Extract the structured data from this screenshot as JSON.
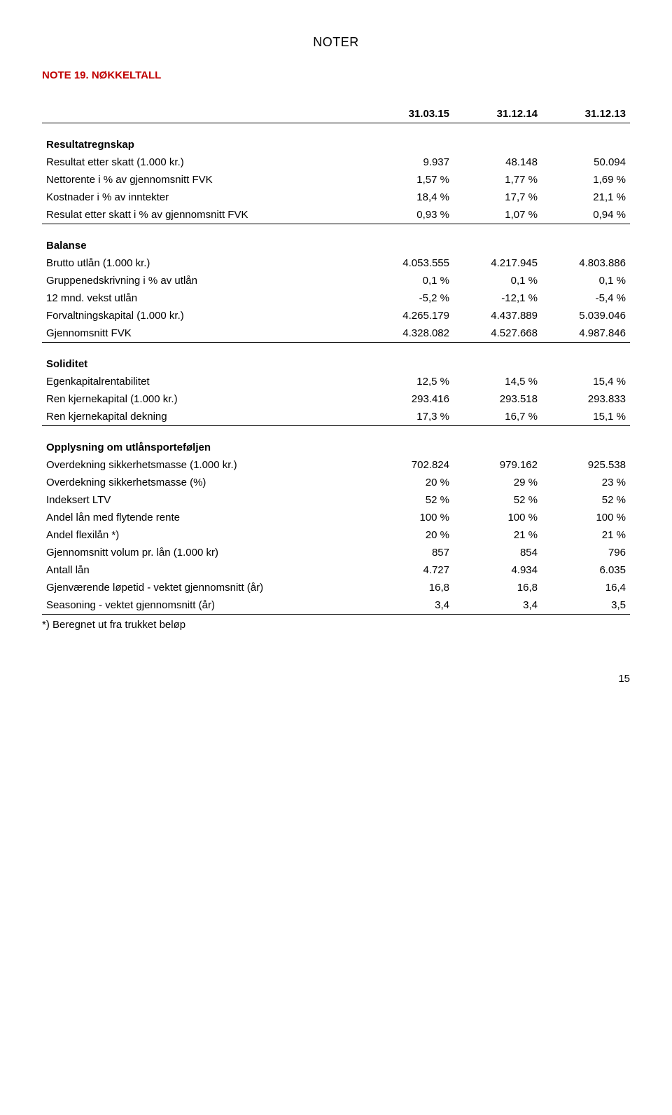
{
  "page": {
    "top_header": "NOTER",
    "note_title": "NOTE 19. NØKKELTALL",
    "page_number": "15"
  },
  "columns": {
    "c1": "31.03.15",
    "c2": "31.12.14",
    "c3": "31.12.13"
  },
  "sections": [
    {
      "title": "Resultatregnskap",
      "rows": [
        {
          "label": "Resultat etter skatt (1.000 kr.)",
          "v1": "9.937",
          "v2": "48.148",
          "v3": "50.094"
        },
        {
          "label": "Nettorente i % av gjennomsnitt FVK",
          "v1": "1,57 %",
          "v2": "1,77 %",
          "v3": "1,69 %"
        },
        {
          "label": "Kostnader i % av inntekter",
          "v1": "18,4 %",
          "v2": "17,7 %",
          "v3": "21,1 %"
        },
        {
          "label": "Resulat etter skatt i % av gjennomsnitt FVK",
          "v1": "0,93 %",
          "v2": "1,07 %",
          "v3": "0,94 %",
          "border": true
        }
      ]
    },
    {
      "title": "Balanse",
      "rows": [
        {
          "label": "Brutto utlån (1.000 kr.)",
          "v1": "4.053.555",
          "v2": "4.217.945",
          "v3": "4.803.886"
        },
        {
          "label": "Gruppenedskrivning i % av utlån",
          "v1": "0,1 %",
          "v2": "0,1 %",
          "v3": "0,1 %"
        },
        {
          "label": "12 mnd. vekst utlån",
          "v1": "-5,2 %",
          "v2": "-12,1 %",
          "v3": "-5,4 %"
        },
        {
          "label": "Forvaltningskapital (1.000 kr.)",
          "v1": "4.265.179",
          "v2": "4.437.889",
          "v3": "5.039.046"
        },
        {
          "label": "Gjennomsnitt FVK",
          "v1": "4.328.082",
          "v2": "4.527.668",
          "v3": "4.987.846",
          "border": true
        }
      ]
    },
    {
      "title": "Soliditet",
      "rows": [
        {
          "label": "Egenkapitalrentabilitet",
          "v1": "12,5 %",
          "v2": "14,5 %",
          "v3": "15,4 %"
        },
        {
          "label": "Ren kjernekapital (1.000 kr.)",
          "v1": "293.416",
          "v2": "293.518",
          "v3": "293.833"
        },
        {
          "label": "Ren kjernekapital dekning",
          "v1": "17,3 %",
          "v2": "16,7 %",
          "v3": "15,1 %",
          "border": true
        }
      ]
    },
    {
      "title": "Opplysning om utlånsporteføljen",
      "rows": [
        {
          "label": "Overdekning sikkerhetsmasse (1.000 kr.)",
          "v1": "702.824",
          "v2": "979.162",
          "v3": "925.538"
        },
        {
          "label": "Overdekning sikkerhetsmasse (%)",
          "v1": "20 %",
          "v2": "29 %",
          "v3": "23 %"
        },
        {
          "label": "Indeksert LTV",
          "v1": "52 %",
          "v2": "52 %",
          "v3": "52 %"
        },
        {
          "label": "Andel lån med flytende rente",
          "v1": "100 %",
          "v2": "100 %",
          "v3": "100 %"
        },
        {
          "label": "Andel flexilån *)",
          "v1": "20 %",
          "v2": "21 %",
          "v3": "21 %"
        },
        {
          "label": "Gjennomsnitt volum pr. lån (1.000 kr)",
          "v1": "857",
          "v2": "854",
          "v3": "796"
        },
        {
          "label": "Antall lån",
          "v1": "4.727",
          "v2": "4.934",
          "v3": "6.035"
        },
        {
          "label": "Gjenværende løpetid - vektet gjennomsnitt (år)",
          "v1": "16,8",
          "v2": "16,8",
          "v3": "16,4"
        },
        {
          "label": "Seasoning - vektet gjennomsnitt (år)",
          "v1": "3,4",
          "v2": "3,4",
          "v3": "3,5",
          "border": true
        }
      ]
    }
  ],
  "footnote": "*) Beregnet ut fra trukket beløp"
}
